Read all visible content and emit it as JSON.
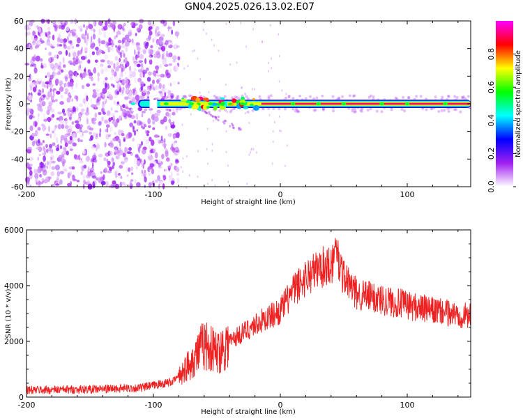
{
  "title": "GN04.2025.026.13.02.E07",
  "chart_data": [
    {
      "type": "heatmap",
      "name": "spectrogram",
      "xlabel": "Height of straight line (km)",
      "ylabel": "Frequency (Hz)",
      "xlim": [
        -200,
        150
      ],
      "ylim": [
        -60,
        60
      ],
      "xticks": [
        -200,
        -100,
        0,
        100
      ],
      "yticks": [
        60,
        40,
        20,
        0,
        -20,
        -40,
        -60
      ],
      "colorbar": {
        "label": "Normalized spectral amplitude",
        "range": [
          0,
          1
        ],
        "ticks": [
          0.0,
          0.2,
          0.4,
          0.6,
          0.8
        ],
        "colors": [
          "#ffffff",
          "#a020f0",
          "#0000ff",
          "#00ffff",
          "#00ff00",
          "#ffff00",
          "#ff0000",
          "#ff00ff"
        ]
      },
      "features": {
        "noise_region_km": [
          -200,
          -85
        ],
        "signal_start_km": -112,
        "signal_frequency_hz": 0,
        "peak_amplitude": 1.0
      }
    },
    {
      "type": "line",
      "name": "snr",
      "xlabel": "Height of straight line (km)",
      "ylabel": "SNR (10 * v/v)",
      "xlim": [
        -200,
        150
      ],
      "ylim": [
        0,
        6000
      ],
      "xticks": [
        -200,
        -100,
        0,
        100
      ],
      "yticks": [
        0,
        2000,
        4000,
        6000
      ],
      "color": "#ee2222",
      "series": [
        {
          "name": "SNR",
          "x": [
            -200,
            -150,
            -110,
            -85,
            -75,
            -60,
            -50,
            -40,
            -20,
            0,
            10,
            20,
            30,
            40,
            45,
            50,
            60,
            80,
            100,
            120,
            150
          ],
          "y": [
            250,
            280,
            330,
            550,
            1000,
            1900,
            1600,
            2000,
            2600,
            3100,
            3800,
            4300,
            4600,
            4800,
            5100,
            4300,
            3700,
            3500,
            3300,
            3100,
            2900
          ]
        }
      ]
    }
  ]
}
